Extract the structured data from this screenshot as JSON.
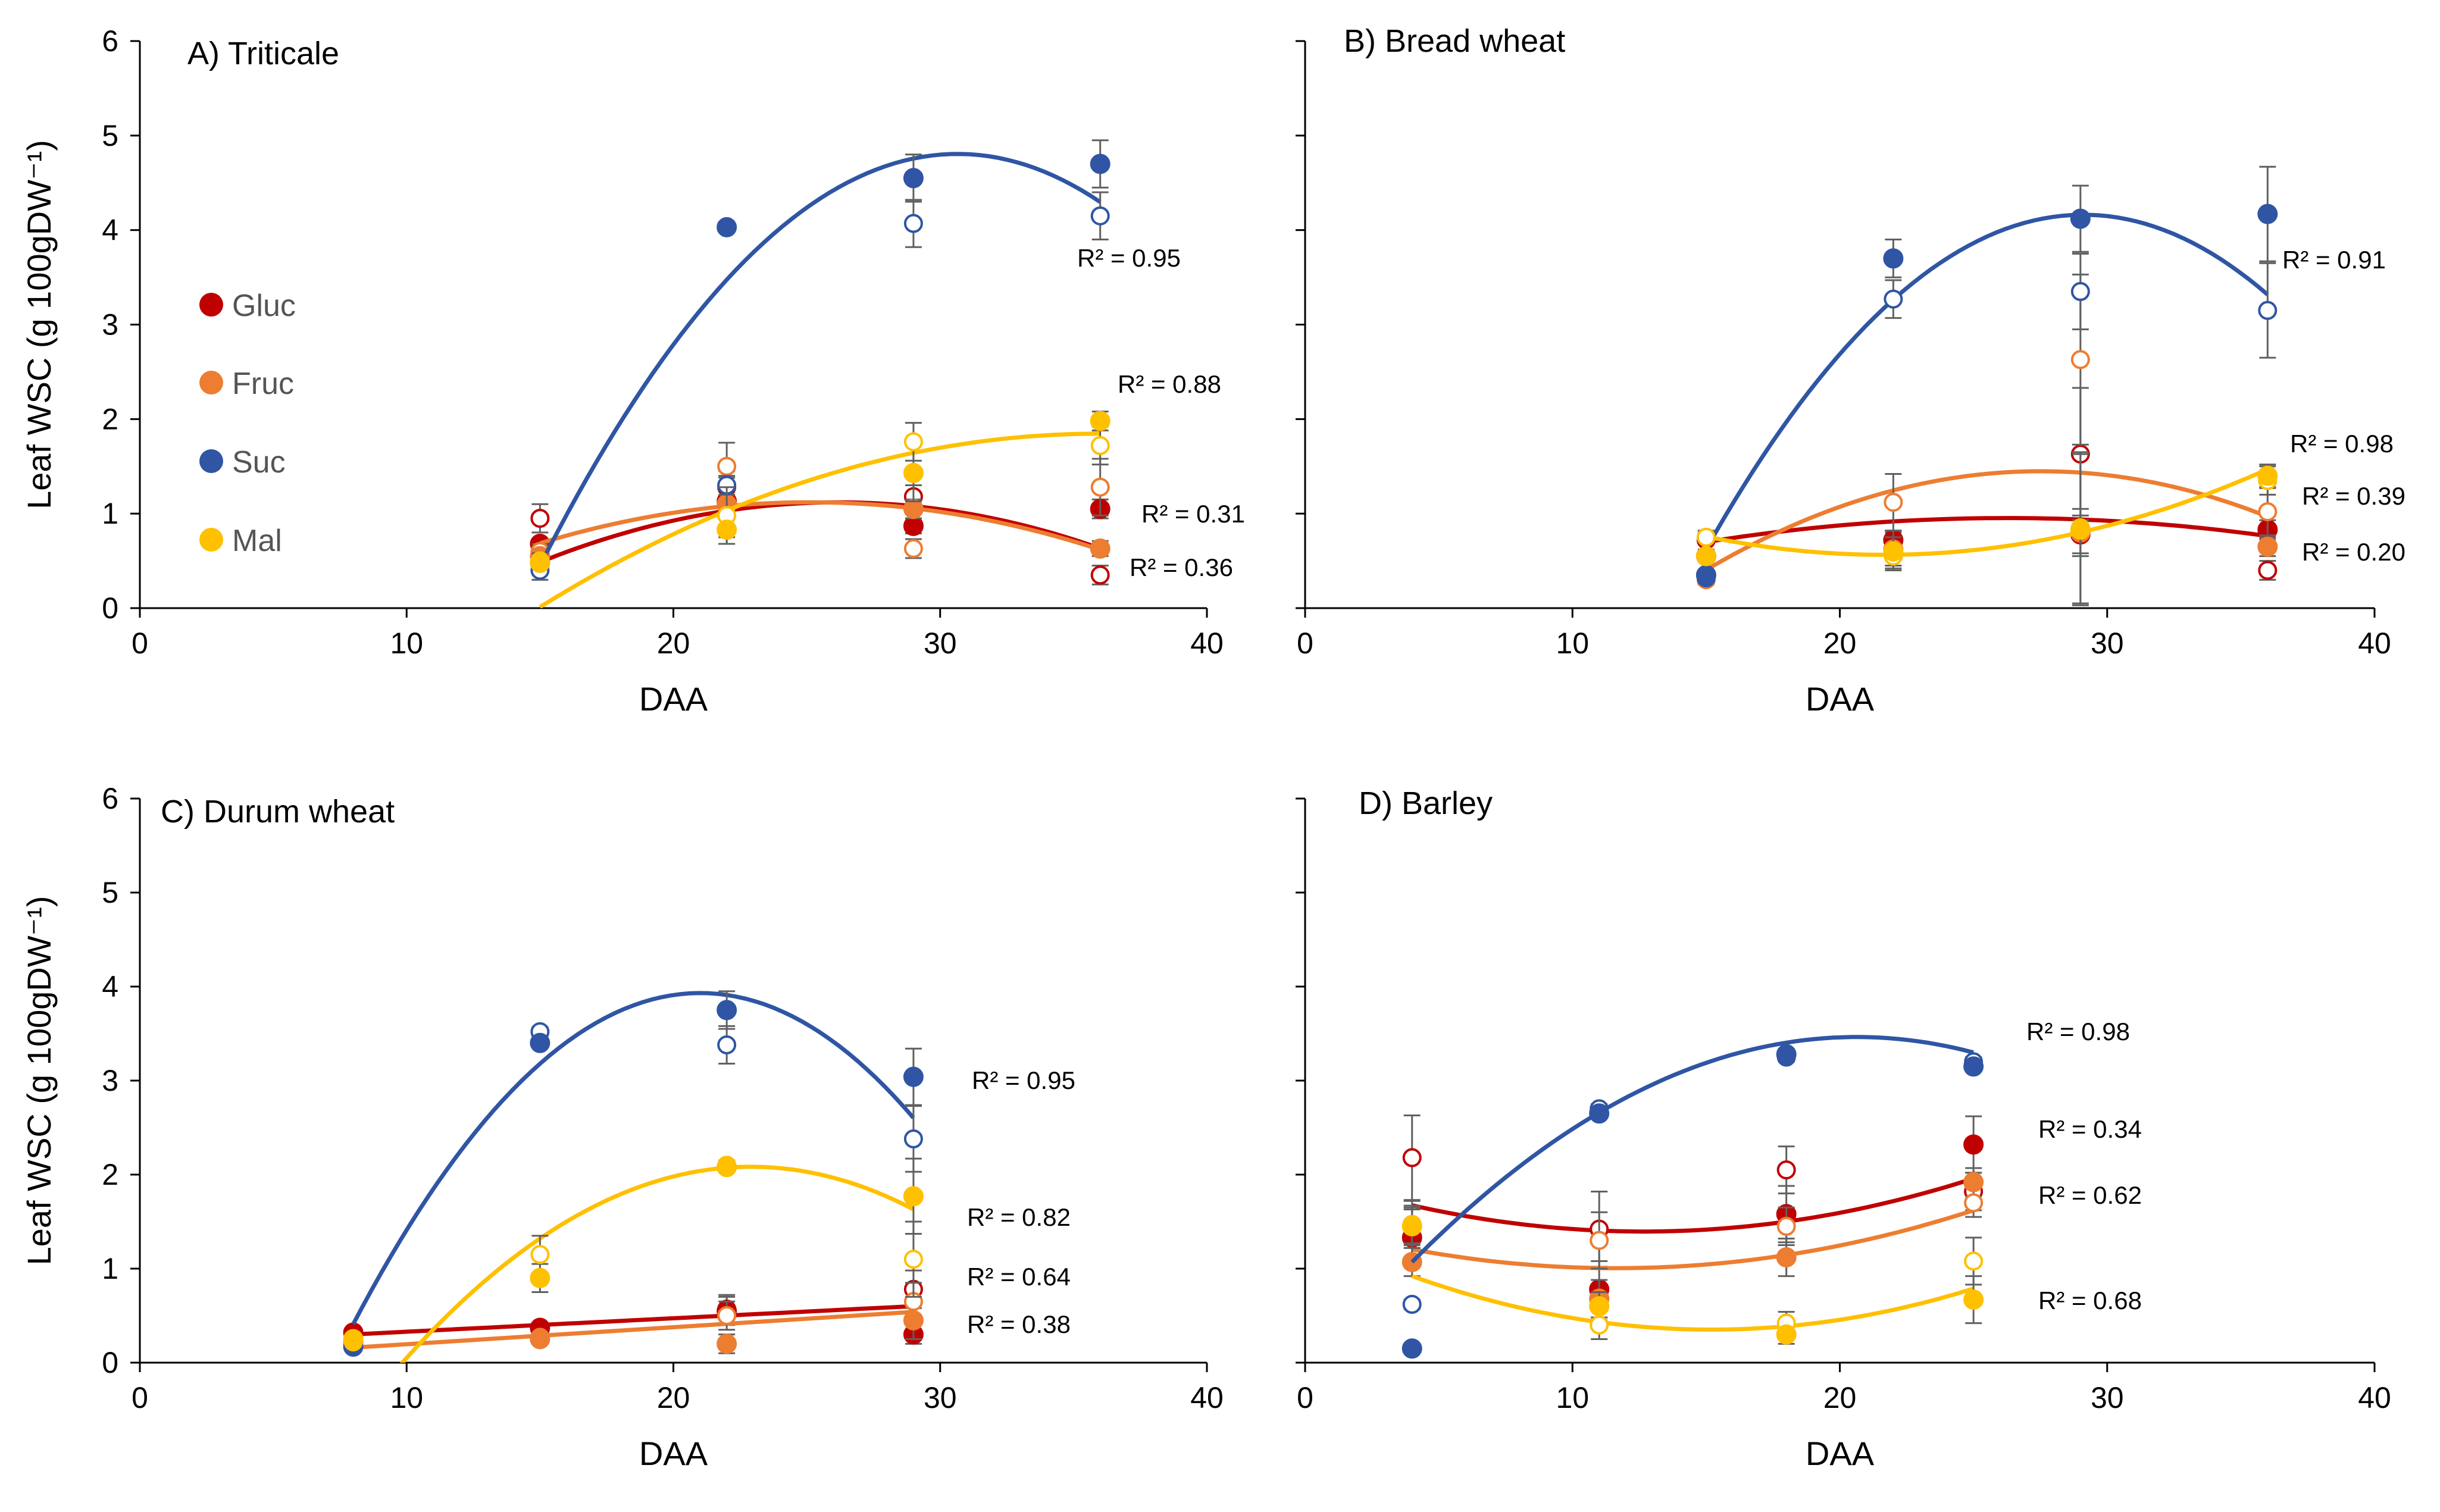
{
  "chart_data": [
    {
      "type": "scatter",
      "title": "A) Triticale",
      "xlabel": "DAA",
      "ylabel": "Leaf WSC (g 100gDW⁻¹)",
      "xlim": [
        0,
        40
      ],
      "ylim": [
        0,
        6
      ],
      "x_ticks": [
        "0",
        "10",
        "20",
        "30",
        "40"
      ],
      "y_ticks": [
        "0",
        "1",
        "2",
        "3",
        "4",
        "5",
        "6"
      ],
      "legend": {
        "placement": "left"
      },
      "series": [
        {
          "name": "Gluc",
          "color": "#c00000",
          "x": [
            15,
            22,
            29,
            36
          ],
          "filled": [
            0.68,
            1.13,
            0.87,
            1.05
          ],
          "open": [
            0.95,
            1.28,
            1.18,
            0.35
          ],
          "err_filled": [
            0.05,
            0.1,
            0.08,
            0.1
          ],
          "err_open": [
            0.15,
            0.1,
            0.12,
            0.1
          ],
          "fit": [
            -0.00506,
            0.265,
            -2.35
          ],
          "r2": "R² = 0.36"
        },
        {
          "name": "Fruc",
          "color": "#ed7d31",
          "x": [
            15,
            22,
            29,
            36
          ],
          "filled": [
            0.55,
            1.1,
            1.05,
            0.63
          ],
          "open": [
            0.6,
            1.5,
            0.63,
            1.28
          ],
          "err_filled": [
            0.05,
            0.35,
            0.1,
            0.08
          ],
          "err_open": [
            0.08,
            0.25,
            0.1,
            0.3
          ],
          "fit": [
            -0.00424,
            0.213,
            -1.555
          ],
          "r2": "R² = 0.31"
        },
        {
          "name": "Suc",
          "color": "#2f55a4",
          "x": [
            15,
            22,
            29,
            36
          ],
          "filled": [
            0.48,
            4.03,
            4.55,
            4.7
          ],
          "open": [
            0.4,
            1.3,
            4.07,
            4.15
          ],
          "err_filled": [
            0.1,
            0.05,
            0.25,
            0.25
          ],
          "err_open": [
            0.1,
            0.1,
            0.25,
            0.25
          ],
          "fit": [
            -0.01778,
            1.09,
            -11.9
          ],
          "r2": "R² = 0.95"
        },
        {
          "name": "Mal",
          "color": "#ffc000",
          "x": [
            15,
            22,
            29,
            36
          ],
          "filled": [
            0.48,
            0.83,
            1.43,
            1.98
          ],
          "open": [
            0.5,
            0.98,
            1.76,
            1.72
          ],
          "err_filled": [
            0.05,
            0.15,
            0.3,
            0.1
          ],
          "err_open": [
            0.05,
            0.3,
            0.2,
            0.2
          ],
          "fit": [
            -0.00417,
            0.3,
            -3.55
          ],
          "r2": "R² = 0.88"
        }
      ]
    },
    {
      "type": "scatter",
      "title": "B) Bread wheat",
      "xlabel": "DAA",
      "ylabel": "",
      "xlim": [
        0,
        40
      ],
      "ylim": [
        0,
        6
      ],
      "x_ticks": [
        "0",
        "10",
        "20",
        "30",
        "40"
      ],
      "series": [
        {
          "name": "Gluc",
          "color": "#c00000",
          "x": [
            15,
            22,
            29,
            36
          ],
          "filled": [
            0.55,
            0.72,
            0.78,
            0.83
          ],
          "open": [
            0.72,
            0.6,
            1.63,
            0.4
          ],
          "err_filled": [
            0.05,
            0.1,
            0.2,
            0.1
          ],
          "err_open": [
            0.1,
            0.2,
            0.7,
            0.1
          ],
          "fit": [
            -0.002,
            0.105,
            -0.425
          ],
          "r2": "R² = 0.20"
        },
        {
          "name": "Fruc",
          "color": "#ed7d31",
          "x": [
            15,
            22,
            29,
            36
          ],
          "filled": [
            0.35,
            0.62,
            0.8,
            0.65
          ],
          "open": [
            0.3,
            1.12,
            2.63,
            1.02
          ],
          "err_filled": [
            0.05,
            0.2,
            0.25,
            0.1
          ],
          "err_open": [
            0.05,
            0.3,
            0.9,
            0.25
          ],
          "fit": [
            -0.00667,
            0.367,
            -3.6
          ],
          "r2": "R² = 0.39"
        },
        {
          "name": "Suc",
          "color": "#2f55a4",
          "x": [
            15,
            22,
            29,
            36
          ],
          "filled": [
            0.35,
            3.7,
            4.12,
            4.17
          ],
          "open": [
            0.32,
            3.27,
            3.35,
            3.15
          ],
          "err_filled": [
            0.05,
            0.2,
            0.35,
            0.5
          ],
          "err_open": [
            0.05,
            0.2,
            0.4,
            0.5
          ],
          "fit": [
            -0.01778,
            1.035,
            -10.9
          ],
          "r2": "R² = 0.91"
        },
        {
          "name": "Mal",
          "color": "#ffc000",
          "x": [
            15,
            22,
            29,
            36
          ],
          "filled": [
            0.55,
            0.6,
            0.83,
            1.4
          ],
          "open": [
            0.75,
            0.55,
            0.85,
            1.35
          ],
          "err_filled": [
            0.05,
            0.15,
            0.8,
            0.12
          ],
          "err_open": [
            0.05,
            0.1,
            0.8,
            0.15
          ],
          "fit": [
            0.00439,
            -0.19,
            2.62
          ],
          "r2": "R² = 0.98"
        }
      ]
    },
    {
      "type": "scatter",
      "title": "C) Durum wheat",
      "xlabel": "DAA",
      "ylabel": "Leaf WSC (g 100gDW⁻¹)",
      "xlim": [
        0,
        40
      ],
      "ylim": [
        0,
        6
      ],
      "x_ticks": [
        "0",
        "10",
        "20",
        "30",
        "40"
      ],
      "y_ticks": [
        "0",
        "1",
        "2",
        "3",
        "4",
        "5",
        "6"
      ],
      "series": [
        {
          "name": "Gluc",
          "color": "#c00000",
          "x": [
            8,
            15,
            22,
            29
          ],
          "filled": [
            0.32,
            0.37,
            0.55,
            0.3
          ],
          "open": [
            0.3,
            0.35,
            0.57,
            0.78
          ],
          "err_filled": [
            0.05,
            0.05,
            0.15,
            0.1
          ],
          "err_open": [
            0.05,
            0.05,
            0.15,
            0.2
          ],
          "fit": [
            0,
            0.0143,
            0.186
          ],
          "r2": "R² = 0.38"
        },
        {
          "name": "Fruc",
          "color": "#ed7d31",
          "x": [
            8,
            15,
            22,
            29
          ],
          "filled": [
            0.22,
            0.25,
            0.2,
            0.45
          ],
          "open": [
            0.2,
            0.27,
            0.5,
            0.65
          ],
          "err_filled": [
            0.05,
            0.05,
            0.1,
            0.2
          ],
          "err_open": [
            0.05,
            0.05,
            0.15,
            0.2
          ],
          "fit": [
            0,
            0.0181,
            0.015
          ],
          "r2": "R² = 0.64"
        },
        {
          "name": "Suc",
          "color": "#2f55a4",
          "x": [
            8,
            15,
            22,
            29
          ],
          "filled": [
            0.17,
            3.4,
            3.75,
            3.04
          ],
          "open": [
            0.25,
            3.52,
            3.38,
            2.38
          ],
          "err_filled": [
            0.05,
            0.05,
            0.2,
            0.3
          ],
          "err_open": [
            0.05,
            0.05,
            0.2,
            0.35
          ],
          "fit": [
            -0.0208,
            0.874,
            -5.25
          ],
          "r2": "R² = 0.95"
        },
        {
          "name": "Mal",
          "color": "#ffc000",
          "x": [
            8,
            15,
            22,
            29
          ],
          "filled": [
            0.25,
            0.9,
            2.08,
            1.77
          ],
          "open": [
            0.22,
            1.15,
            2.1,
            1.1
          ],
          "err_filled": [
            0.05,
            0.15,
            0.05,
            0.4
          ],
          "err_open": [
            0.05,
            0.2,
            0.05,
            0.4
          ],
          "fit": [
            -0.0122,
            0.559,
            -4.32
          ],
          "r2": "R² = 0.82"
        }
      ]
    },
    {
      "type": "scatter",
      "title": "D) Barley",
      "xlabel": "DAA",
      "ylabel": "",
      "xlim": [
        0,
        40
      ],
      "ylim": [
        0,
        6
      ],
      "x_ticks": [
        "0",
        "10",
        "20",
        "30",
        "40"
      ],
      "series": [
        {
          "name": "Gluc",
          "color": "#c00000",
          "x": [
            4,
            11,
            18,
            25
          ],
          "filled": [
            1.33,
            0.78,
            1.58,
            2.32
          ],
          "open": [
            2.18,
            1.42,
            2.05,
            1.82
          ],
          "err_filled": [
            0.3,
            0.3,
            0.3,
            0.3
          ],
          "err_open": [
            0.45,
            0.4,
            0.25,
            0.2
          ],
          "fit": [
            0.00371,
            -0.094,
            1.99
          ],
          "r2": "R² = 0.34"
        },
        {
          "name": "Fruc",
          "color": "#ed7d31",
          "x": [
            4,
            11,
            18,
            25
          ],
          "filled": [
            1.07,
            0.68,
            1.12,
            1.92
          ],
          "open": [
            1.47,
            1.3,
            1.45,
            1.7
          ],
          "err_filled": [
            0.15,
            0.2,
            0.2,
            0.15
          ],
          "err_open": [
            0.2,
            0.3,
            0.2,
            0.15
          ],
          "fit": [
            0.00344,
            -0.08,
            1.47
          ],
          "r2": "R² = 0.62"
        },
        {
          "name": "Suc",
          "color": "#2f55a4",
          "x": [
            4,
            11,
            18,
            25
          ],
          "filled": [
            0.15,
            2.65,
            3.28,
            3.15
          ],
          "open": [
            0.62,
            2.7,
            3.25,
            3.2
          ],
          "err_filled": [
            0.05,
            0.05,
            0.05,
            0.05
          ],
          "err_open": [
            0.05,
            0.05,
            0.05,
            0.05
          ],
          "fit": [
            -0.00865,
            0.357,
            -0.22
          ],
          "r2": "R² = 0.98"
        },
        {
          "name": "Mal",
          "color": "#ffc000",
          "x": [
            4,
            11,
            18,
            25
          ],
          "filled": [
            1.45,
            0.6,
            0.3,
            0.67
          ],
          "open": [
            1.47,
            0.4,
            0.42,
            1.08
          ],
          "err_filled": [
            0.2,
            0.15,
            0.1,
            0.25
          ],
          "err_open": [
            0.25,
            0.15,
            0.12,
            0.25
          ],
          "fit": [
            0.00454,
            -0.138,
            1.4
          ],
          "r2": "R² = 0.68"
        }
      ]
    }
  ]
}
